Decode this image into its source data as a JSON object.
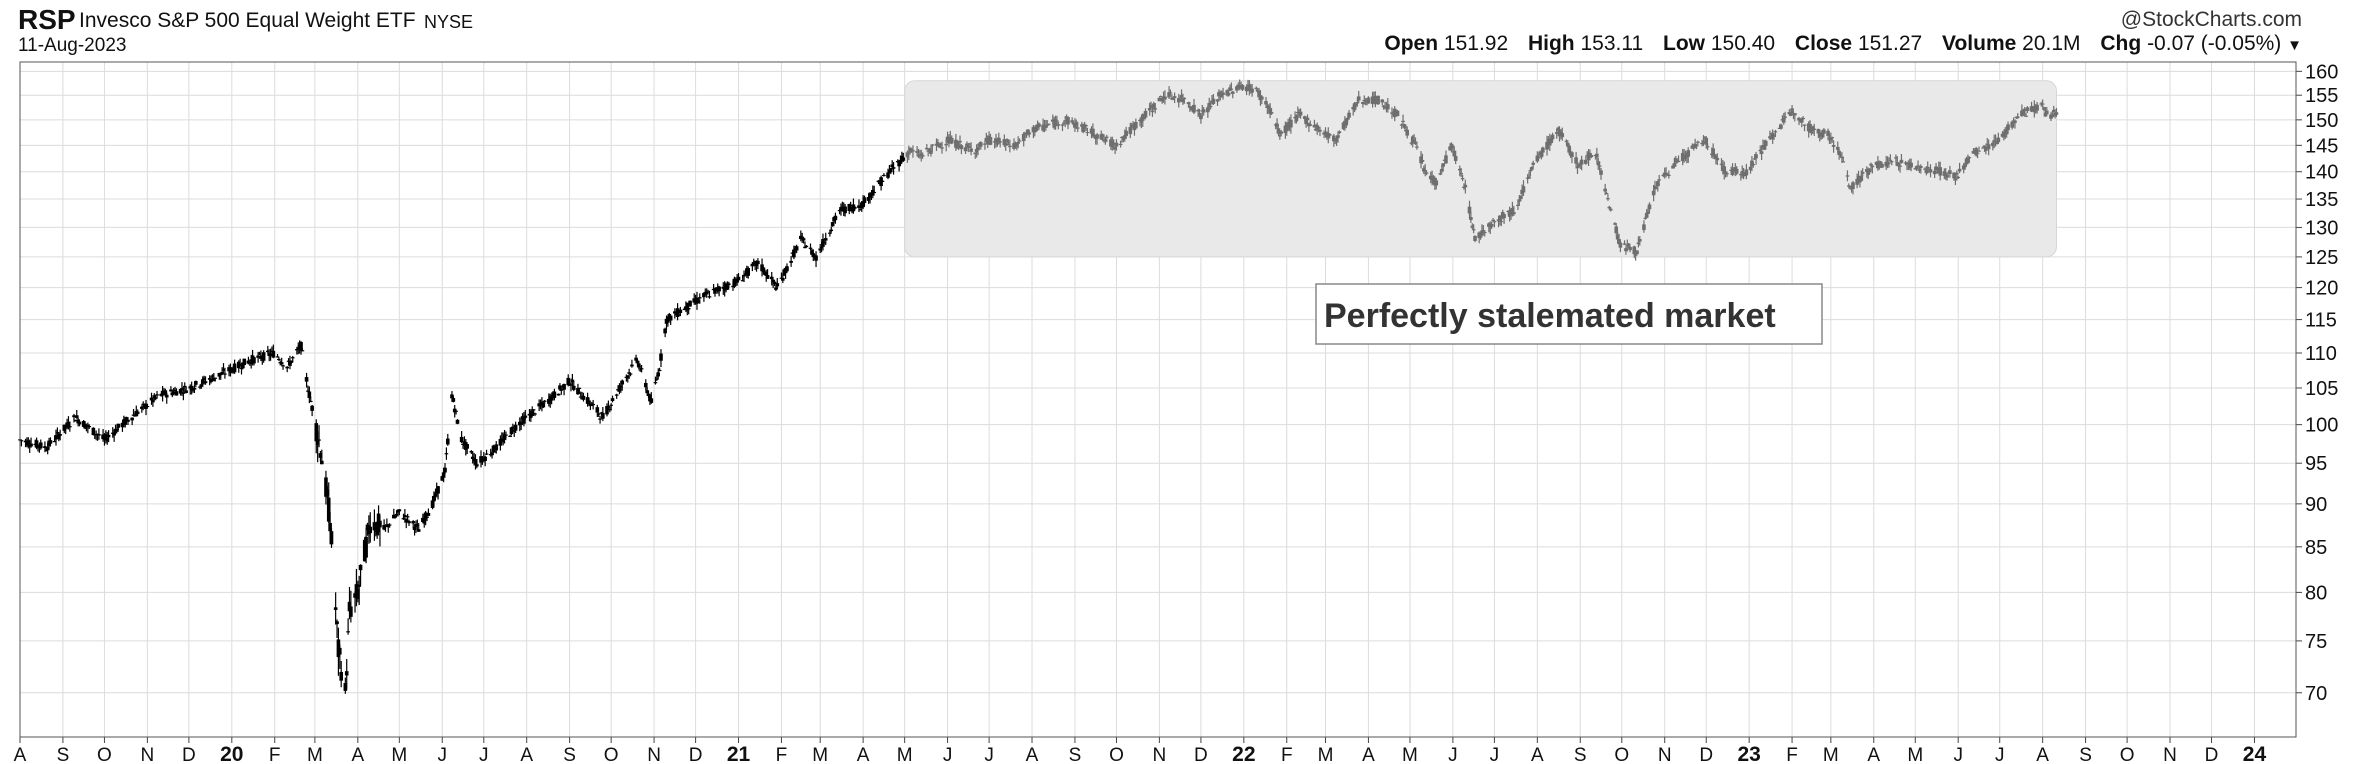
{
  "header": {
    "symbol": "RSP",
    "name": "Invesco S&P 500 Equal Weight ETF",
    "exchange": "NYSE",
    "date": "11-Aug-2023",
    "brand": "@StockCharts.com",
    "open_label": "Open",
    "open": "151.92",
    "high_label": "High",
    "high": "153.11",
    "low_label": "Low",
    "low": "150.40",
    "close_label": "Close",
    "close": "151.27",
    "volume_label": "Volume",
    "volume": "20.1M",
    "chg_label": "Chg",
    "chg": "-0.07 (-0.05%)",
    "chg_arrow": "▼"
  },
  "colors": {
    "price_bars_before": "#000000",
    "price_bars_range": "#6e6e6e",
    "range_box": "#e9e9e9",
    "grid": "#dcdcdc"
  },
  "chart_data": {
    "type": "ohlc-bar",
    "title": "",
    "xlabel": "",
    "ylabel": "",
    "x_range": [
      "2019-08-01",
      "2024-01-31"
    ],
    "ylim": [
      66,
      162
    ],
    "y_ticks": [
      70,
      75,
      80,
      85,
      90,
      95,
      100,
      105,
      110,
      115,
      120,
      125,
      130,
      135,
      140,
      145,
      150,
      155,
      160
    ],
    "x_tick_labels": [
      "A",
      "S",
      "O",
      "N",
      "D",
      "20",
      "F",
      "M",
      "A",
      "M",
      "J",
      "J",
      "A",
      "S",
      "O",
      "N",
      "D",
      "21",
      "F",
      "M",
      "A",
      "M",
      "J",
      "J",
      "A",
      "S",
      "O",
      "N",
      "D",
      "22",
      "F",
      "M",
      "A",
      "M",
      "J",
      "J",
      "A",
      "S",
      "O",
      "N",
      "D",
      "23",
      "F",
      "M",
      "A",
      "M",
      "J",
      "J",
      "A",
      "S",
      "O",
      "N",
      "D",
      "24"
    ],
    "grid": true,
    "series": [
      {
        "points": [
          [
            "2019-08-01",
            98
          ],
          [
            "2019-08-20",
            97
          ],
          [
            "2019-09-10",
            101
          ],
          [
            "2019-10-01",
            98
          ],
          [
            "2019-10-20",
            101
          ],
          [
            "2019-11-10",
            104
          ],
          [
            "2019-12-01",
            105
          ],
          [
            "2019-12-25",
            107
          ],
          [
            "2020-01-15",
            109
          ],
          [
            "2020-02-01",
            110
          ],
          [
            "2020-02-10",
            108
          ],
          [
            "2020-02-20",
            111
          ],
          [
            "2020-02-25",
            105
          ],
          [
            "2020-03-05",
            97
          ],
          [
            "2020-03-12",
            88
          ],
          [
            "2020-03-18",
            74
          ],
          [
            "2020-03-23",
            70
          ],
          [
            "2020-03-26",
            78
          ],
          [
            "2020-04-01",
            80
          ],
          [
            "2020-04-10",
            88
          ],
          [
            "2020-04-20",
            87
          ],
          [
            "2020-05-01",
            89
          ],
          [
            "2020-05-15",
            87
          ],
          [
            "2020-05-25",
            90
          ],
          [
            "2020-06-03",
            94
          ],
          [
            "2020-06-08",
            104
          ],
          [
            "2020-06-15",
            98
          ],
          [
            "2020-06-26",
            95
          ],
          [
            "2020-07-10",
            97
          ],
          [
            "2020-07-25",
            100
          ],
          [
            "2020-08-15",
            103
          ],
          [
            "2020-09-01",
            106
          ],
          [
            "2020-09-10",
            104
          ],
          [
            "2020-09-25",
            101
          ],
          [
            "2020-10-10",
            106
          ],
          [
            "2020-10-20",
            109
          ],
          [
            "2020-10-30",
            103
          ],
          [
            "2020-11-05",
            108
          ],
          [
            "2020-11-10",
            115
          ],
          [
            "2020-11-25",
            117
          ],
          [
            "2020-12-10",
            119
          ],
          [
            "2020-12-31",
            121
          ],
          [
            "2021-01-15",
            124
          ],
          [
            "2021-01-29",
            120
          ],
          [
            "2021-02-15",
            128
          ],
          [
            "2021-02-26",
            125
          ],
          [
            "2021-03-15",
            133
          ],
          [
            "2021-03-31",
            134
          ],
          [
            "2021-04-20",
            140
          ],
          [
            "2021-05-05",
            144
          ],
          [
            "2021-05-12",
            143
          ],
          [
            "2021-06-01",
            146
          ],
          [
            "2021-06-20",
            144
          ],
          [
            "2021-07-01",
            146
          ],
          [
            "2021-07-20",
            145
          ],
          [
            "2021-08-01",
            148
          ],
          [
            "2021-08-25",
            150
          ],
          [
            "2021-09-10",
            148
          ],
          [
            "2021-09-30",
            145
          ],
          [
            "2021-10-15",
            149
          ],
          [
            "2021-11-05",
            155
          ],
          [
            "2021-11-20",
            154
          ],
          [
            "2021-12-01",
            151
          ],
          [
            "2021-12-15",
            155
          ],
          [
            "2021-12-31",
            157
          ],
          [
            "2022-01-10",
            156
          ],
          [
            "2022-01-20",
            152
          ],
          [
            "2022-01-27",
            147
          ],
          [
            "2022-02-10",
            151
          ],
          [
            "2022-02-25",
            148
          ],
          [
            "2022-03-08",
            146
          ],
          [
            "2022-03-25",
            154
          ],
          [
            "2022-04-08",
            154
          ],
          [
            "2022-04-22",
            151
          ],
          [
            "2022-05-05",
            145
          ],
          [
            "2022-05-12",
            140
          ],
          [
            "2022-05-20",
            138
          ],
          [
            "2022-05-31",
            145
          ],
          [
            "2022-06-10",
            137
          ],
          [
            "2022-06-17",
            128
          ],
          [
            "2022-06-30",
            131
          ],
          [
            "2022-07-15",
            133
          ],
          [
            "2022-07-31",
            142
          ],
          [
            "2022-08-16",
            148
          ],
          [
            "2022-08-31",
            141
          ],
          [
            "2022-09-12",
            144
          ],
          [
            "2022-09-23",
            133
          ],
          [
            "2022-09-30",
            127
          ],
          [
            "2022-10-12",
            126
          ],
          [
            "2022-10-25",
            137
          ],
          [
            "2022-11-10",
            142
          ],
          [
            "2022-11-30",
            146
          ],
          [
            "2022-12-15",
            140
          ],
          [
            "2022-12-30",
            140
          ],
          [
            "2023-01-15",
            146
          ],
          [
            "2023-02-02",
            152
          ],
          [
            "2023-02-15",
            148
          ],
          [
            "2023-02-28",
            147
          ],
          [
            "2023-03-10",
            142
          ],
          [
            "2023-03-15",
            137
          ],
          [
            "2023-03-31",
            141
          ],
          [
            "2023-04-15",
            142
          ],
          [
            "2023-05-01",
            141
          ],
          [
            "2023-05-20",
            140
          ],
          [
            "2023-05-31",
            139
          ],
          [
            "2023-06-10",
            143
          ],
          [
            "2023-06-30",
            146
          ],
          [
            "2023-07-15",
            151
          ],
          [
            "2023-07-31",
            153
          ],
          [
            "2023-08-04",
            151
          ],
          [
            "2023-08-11",
            151.27
          ]
        ]
      }
    ],
    "annotations": [
      {
        "text": "Perfectly stalemated market",
        "range": [
          "2021-05-01",
          "2023-08-11"
        ],
        "ylim": [
          125,
          158
        ]
      }
    ]
  }
}
